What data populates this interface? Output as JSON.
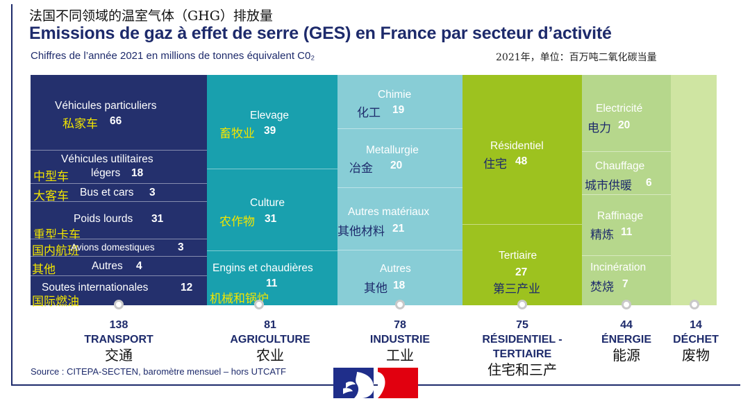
{
  "header": {
    "title_cn": "法国不同领域的温室气体（GHG）排放量",
    "title_fr": "Emissions de gaz à effet de serre (GES) en France par secteur d’activité",
    "subtitle_fr": "Chiffres de l’année 2021 en millions de tonnes équivalent C0₂",
    "subtitle_cn": "2021年，单位：百万吨二氧化碳当量"
  },
  "colors": {
    "transport": "#24306d",
    "agriculture": "#19a0ae",
    "industrie": "#88cdd6",
    "residentiel": "#9dc21f",
    "energie": "#b6d78c",
    "dechet": "#cfe5a2",
    "title": "#1d2a6b",
    "label_yellow": "#f2e500"
  },
  "chart_data": {
    "type": "treemap",
    "title": "Emissions de gaz à effet de serre (GES) en France par secteur d’activité",
    "unit": "millions de tonnes équivalent C0₂",
    "year": 2021,
    "sectors": [
      {
        "name": "TRANSPORT",
        "name_cn": "交通",
        "total": "138",
        "items": [
          {
            "name": "Véhicules particuliers",
            "name_cn": "私家车",
            "value": "66"
          },
          {
            "name": "Véhicules utilitaires",
            "name2": "légers",
            "name_cn": "中型车",
            "value": "18"
          },
          {
            "name": "Bus et cars",
            "name_cn": "大客车",
            "value": "3"
          },
          {
            "name": "Poids lourds",
            "name_cn": "重型卡车",
            "value": "31"
          },
          {
            "name": "Avions domestiques",
            "name_cn": "国内航班",
            "value": "3"
          },
          {
            "name": "Autres",
            "name_cn": "其他",
            "value": "4"
          },
          {
            "name": "Soutes internationales",
            "name_cn": "国际燃油",
            "value": "12"
          }
        ]
      },
      {
        "name": "AGRICULTURE",
        "name_cn": "农业",
        "total": "81",
        "items": [
          {
            "name": "Elevage",
            "name_cn": "畜牧业",
            "value": "39"
          },
          {
            "name": "Culture",
            "name_cn": "农作物",
            "value": "31"
          },
          {
            "name": "Engins et chaudières",
            "name_cn": "机械和锅炉",
            "value": "11"
          }
        ]
      },
      {
        "name": "INDUSTRIE",
        "name_cn": "工业",
        "total": "78",
        "items": [
          {
            "name": "Chimie",
            "name_cn": "化工",
            "value": "19"
          },
          {
            "name": "Metallurgie",
            "name_cn": "冶金",
            "value": "20"
          },
          {
            "name": "Autres matériaux",
            "name_cn": "其他材料",
            "value": "21"
          },
          {
            "name": "Autres",
            "name_cn": "其他",
            "value": "18"
          }
        ]
      },
      {
        "name": "RÉSIDENTIEL -",
        "name2": "TERTIAIRE",
        "name_cn": "住宅和三产",
        "total": "75",
        "items": [
          {
            "name": "Résidentiel",
            "name_cn": "住宅",
            "value": "48"
          },
          {
            "name": "Tertiaire",
            "name_cn": "第三产业",
            "value": "27"
          }
        ]
      },
      {
        "name": "ÉNERGIE",
        "name_cn": "能源",
        "total": "44",
        "items": [
          {
            "name": "Electricité",
            "name_cn": "电力",
            "value": "20"
          },
          {
            "name": "Chauffage",
            "name_cn": "城市供暖",
            "value": "6"
          },
          {
            "name": "Raffinage",
            "name_cn": "精炼",
            "value": "11"
          },
          {
            "name": "Incinération",
            "name_cn": "焚烧",
            "value": "7"
          }
        ]
      },
      {
        "name": "DÉCHET",
        "name_cn": "废物",
        "total": "14",
        "items": []
      }
    ]
  },
  "source": "Source : CITEPA-SECTEN, baromètre mensuel – hors UTCATF"
}
